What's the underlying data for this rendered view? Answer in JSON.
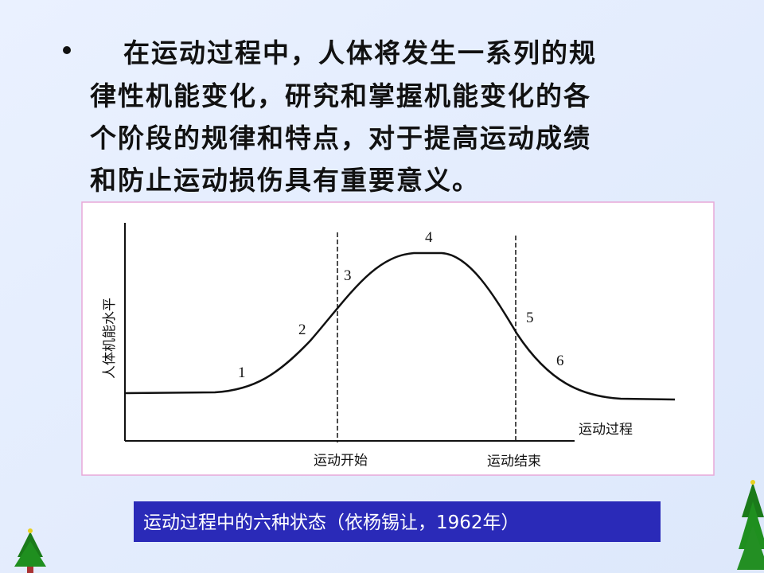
{
  "bullet": {
    "lines": [
      "在运动过程中，人体将发生一系列的规",
      "律性机能变化，研究和掌握机能变化的各",
      "个阶段的规律和特点，对于提高运动成绩",
      "和防止运动损伤具有重要意义。"
    ]
  },
  "figure": {
    "y_axis_label": "人体机能水平",
    "x_axis_label": "运动过程",
    "start_label": "运动开始",
    "end_label": "运动结束",
    "stage_labels": [
      "1",
      "2",
      "3",
      "4",
      "5",
      "6"
    ]
  },
  "caption": "运动过程中的六种状态（依杨锡让，1962年）"
}
